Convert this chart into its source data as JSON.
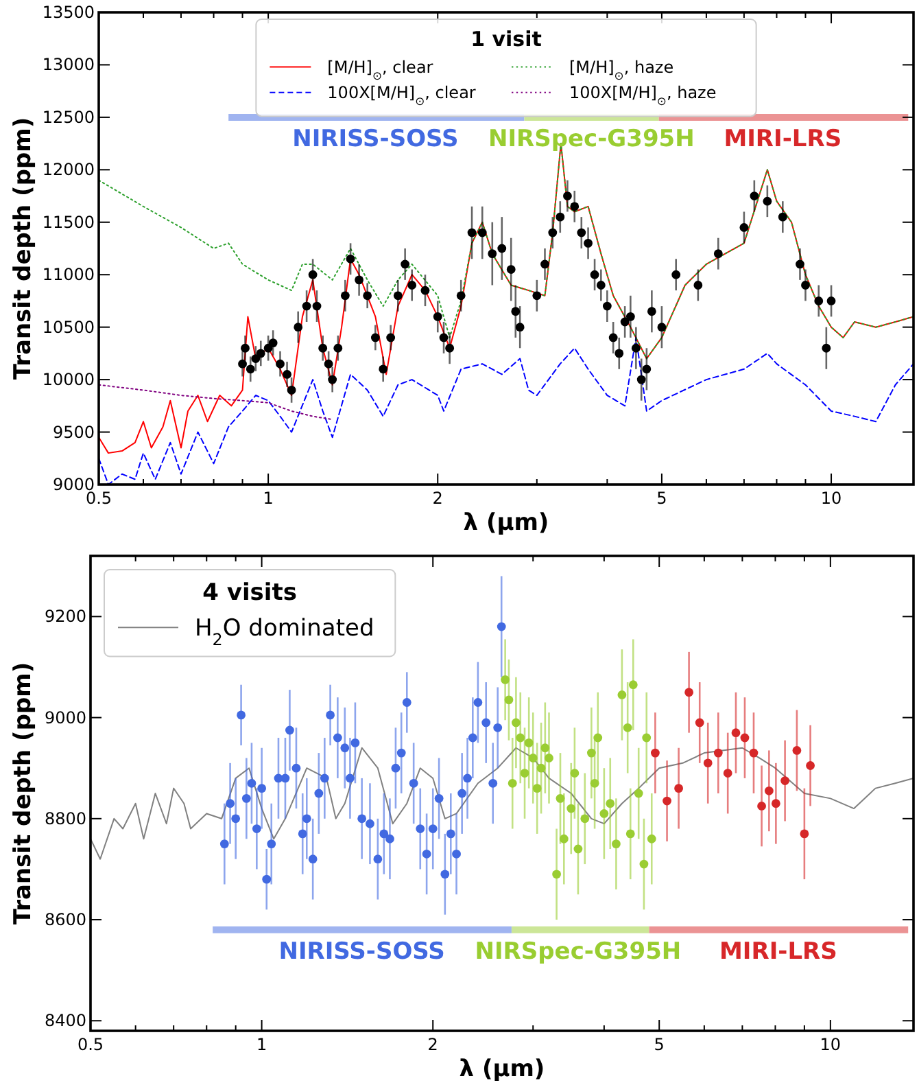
{
  "chart_data": [
    {
      "type": "line",
      "legend_title": "1 visit",
      "xlabel": "λ (μm)",
      "ylabel": "Transit depth (ppm)",
      "log": "x",
      "legend": "top",
      "xlim": [
        0.5,
        14
      ],
      "xticks": [
        0.5,
        {
          "value": 0.6,
          "label": null
        },
        {
          "value": 0.7,
          "label": null
        },
        {
          "value": 0.8,
          "label": null
        },
        {
          "value": 0.9,
          "label": null
        },
        1,
        2,
        {
          "value": 3,
          "label": null
        },
        {
          "value": 4,
          "label": null
        },
        5,
        {
          "value": 6,
          "label": null
        },
        {
          "value": 7,
          "label": null
        },
        {
          "value": 8,
          "label": null
        },
        {
          "value": 9,
          "label": null
        },
        10
      ],
      "ylim": [
        9000,
        13500
      ],
      "yticks": [
        9000,
        9500,
        10000,
        10500,
        11000,
        11500,
        12000,
        12500,
        13000,
        13500
      ],
      "annotations": [
        {
          "text": "NIRISS-SOSS",
          "x": 1.55,
          "y": 12500
        },
        {
          "text": "NIRSpec-G395H",
          "x": 3.75,
          "y": 12500
        },
        {
          "text": "MIRI-LRS",
          "x": 8.2,
          "y": 12500
        }
      ],
      "series": [
        {
          "name": "[M/H]$_{⊙}$, clear",
          "type": "line",
          "color": "#ff0000",
          "line_style": "solid",
          "marker": "none",
          "x": [
            0.5,
            0.52,
            0.55,
            0.58,
            0.6,
            0.62,
            0.65,
            0.67,
            0.7,
            0.72,
            0.75,
            0.78,
            0.82,
            0.86,
            0.9,
            0.92,
            0.95,
            1.0,
            1.05,
            1.1,
            1.15,
            1.2,
            1.25,
            1.3,
            1.35,
            1.4,
            1.45,
            1.55,
            1.62,
            1.7,
            1.8,
            1.9,
            2.0,
            2.1,
            2.2,
            2.3,
            2.4,
            2.5,
            2.7,
            2.9,
            3.1,
            3.2,
            3.31,
            3.4,
            3.5,
            3.7,
            3.9,
            4.1,
            4.4,
            4.7,
            5.0,
            5.5,
            6.0,
            7.0,
            7.7,
            8.0,
            8.5,
            9.0,
            9.5,
            10,
            10.5,
            11,
            12,
            13,
            14
          ],
          "values": [
            9450,
            9300,
            9320,
            9400,
            9600,
            9350,
            9550,
            9800,
            9350,
            9700,
            9850,
            9600,
            9850,
            9750,
            9900,
            10600,
            10200,
            10300,
            10100,
            9850,
            10600,
            10950,
            10300,
            9950,
            10500,
            11150,
            11000,
            10600,
            10050,
            10700,
            11000,
            10850,
            10600,
            10300,
            10700,
            11300,
            11500,
            11200,
            10900,
            10850,
            10800,
            11400,
            12250,
            11650,
            11600,
            11650,
            11200,
            10800,
            10500,
            10200,
            10400,
            10900,
            11100,
            11300,
            12000,
            11700,
            11500,
            11000,
            10700,
            10500,
            10400,
            10550,
            10500,
            10550,
            10600
          ]
        },
        {
          "name": "100X[M/H]$_{⊙}$, clear",
          "type": "line",
          "color": "#0000ff",
          "line_style": "dashed",
          "marker": "none",
          "x": [
            0.5,
            0.52,
            0.55,
            0.58,
            0.6,
            0.63,
            0.67,
            0.7,
            0.75,
            0.8,
            0.85,
            0.9,
            0.95,
            1.0,
            1.05,
            1.1,
            1.2,
            1.25,
            1.3,
            1.4,
            1.5,
            1.6,
            1.7,
            1.8,
            2.0,
            2.05,
            2.2,
            2.4,
            2.6,
            2.8,
            2.9,
            3.0,
            3.3,
            3.5,
            3.7,
            4.0,
            4.3,
            4.5,
            4.7,
            5.0,
            6.0,
            7.0,
            7.7,
            8.0,
            9.0,
            10,
            11,
            12,
            13,
            14
          ],
          "values": [
            9250,
            9000,
            9100,
            9050,
            9300,
            9050,
            9400,
            9100,
            9500,
            9200,
            9550,
            9700,
            9850,
            9800,
            9650,
            9500,
            10000,
            9700,
            9450,
            10050,
            9900,
            9650,
            9950,
            10000,
            9850,
            9700,
            10100,
            10150,
            10050,
            10200,
            9900,
            9850,
            10150,
            10300,
            10100,
            9850,
            9750,
            10400,
            9700,
            9800,
            10000,
            10100,
            10250,
            10150,
            9950,
            9700,
            9650,
            9600,
            9950,
            10150
          ]
        },
        {
          "name": "[M/H]$_{⊙}$, haze",
          "type": "line",
          "color": "#2ca02c",
          "line_style": "dotted",
          "marker": "none",
          "x": [
            0.5,
            0.6,
            0.7,
            0.8,
            0.85,
            0.9,
            1.0,
            1.1,
            1.15,
            1.2,
            1.3,
            1.4,
            1.5,
            1.6,
            1.7,
            1.8,
            2.0,
            2.1,
            2.2,
            2.3,
            2.4,
            2.5,
            2.7,
            2.9,
            3.1,
            3.2,
            3.31,
            3.4,
            3.5,
            3.7,
            3.9,
            4.1,
            4.4,
            4.7,
            5.0,
            5.5,
            6.0,
            7.0,
            7.7,
            8.0,
            8.5,
            9.0,
            9.5,
            10,
            10.5,
            11,
            12,
            13,
            14
          ],
          "values": [
            11900,
            11650,
            11450,
            11250,
            11300,
            11100,
            10950,
            10850,
            11100,
            11100,
            10950,
            11250,
            10950,
            10700,
            10950,
            11100,
            10800,
            10400,
            10750,
            11300,
            11500,
            11200,
            10900,
            10850,
            10800,
            11400,
            12250,
            11650,
            11600,
            11650,
            11200,
            10800,
            10500,
            10200,
            10400,
            10900,
            11100,
            11300,
            12000,
            11700,
            11500,
            11000,
            10700,
            10500,
            10400,
            10550,
            10500,
            10550,
            10600
          ]
        },
        {
          "name": "100X[M/H]$_{⊙}$, haze",
          "type": "line",
          "color": "#800080",
          "line_style": "dotted",
          "marker": "none",
          "x": [
            0.5,
            0.6,
            0.7,
            0.8,
            0.9,
            1.0,
            1.1,
            1.2,
            1.3
          ],
          "values": [
            9950,
            9900,
            9850,
            9820,
            9800,
            9780,
            9700,
            9650,
            9620
          ]
        },
        {
          "type": "scatter",
          "color": "#000000",
          "marker": "circle",
          "x": [
            0.9,
            0.91,
            0.93,
            0.95,
            0.97,
            1.0,
            1.02,
            1.05,
            1.08,
            1.1,
            1.13,
            1.17,
            1.2,
            1.22,
            1.25,
            1.28,
            1.3,
            1.33,
            1.37,
            1.4,
            1.45,
            1.5,
            1.55,
            1.6,
            1.65,
            1.7,
            1.75,
            1.8,
            1.9,
            2.0,
            2.05,
            2.1,
            2.2,
            2.3,
            2.4,
            2.5,
            2.6,
            2.7,
            2.75,
            2.8,
            3.0,
            3.1,
            3.2,
            3.3,
            3.4,
            3.5,
            3.6,
            3.7,
            3.8,
            3.9,
            4.0,
            4.1,
            4.2,
            4.3,
            4.4,
            4.5,
            4.6,
            4.7,
            4.8,
            5.0,
            5.3,
            5.8,
            6.3,
            7.0,
            7.3,
            7.7,
            8.2,
            8.8,
            9.0,
            9.5,
            9.8,
            10.0
          ],
          "values": [
            10150,
            10300,
            10100,
            10200,
            10250,
            10300,
            10350,
            10150,
            10050,
            9900,
            10500,
            10700,
            11000,
            10700,
            10300,
            10150,
            10000,
            10300,
            10800,
            11150,
            10950,
            10800,
            10400,
            10100,
            10400,
            10800,
            11100,
            10900,
            10850,
            10600,
            10400,
            10300,
            10800,
            11400,
            11400,
            11200,
            11250,
            11050,
            10650,
            10500,
            10800,
            11100,
            11400,
            11550,
            11750,
            11650,
            11400,
            11300,
            11000,
            10900,
            10700,
            10400,
            10250,
            10550,
            10600,
            10300,
            10000,
            10100,
            10650,
            10500,
            11000,
            10900,
            11200,
            11450,
            11750,
            11700,
            11550,
            11100,
            10900,
            10750,
            10300,
            10750
          ],
          "errors": [
            120,
            120,
            120,
            120,
            120,
            120,
            120,
            120,
            120,
            120,
            150,
            150,
            150,
            150,
            120,
            120,
            120,
            120,
            150,
            150,
            150,
            120,
            120,
            120,
            120,
            150,
            150,
            150,
            150,
            150,
            150,
            150,
            150,
            250,
            250,
            300,
            300,
            300,
            250,
            200,
            150,
            150,
            150,
            150,
            150,
            150,
            150,
            150,
            150,
            150,
            150,
            150,
            150,
            150,
            200,
            200,
            200,
            200,
            200,
            200,
            150,
            150,
            150,
            150,
            150,
            150,
            150,
            150,
            150,
            150,
            200,
            150
          ]
        },
        {
          "type": "line",
          "color": "#a0b4f0",
          "x": [
            0.85,
            2.85
          ],
          "values": [
            12500,
            12500
          ]
        },
        {
          "type": "line",
          "color": "#cce698",
          "x": [
            2.85,
            4.94
          ],
          "values": [
            12500,
            12500
          ]
        },
        {
          "type": "line",
          "color": "#eb9394",
          "x": [
            4.94,
            13.7
          ],
          "values": [
            12500,
            12500
          ]
        }
      ]
    },
    {
      "type": "line",
      "legend_title": "4 visits",
      "xlabel": "λ (μm)",
      "ylabel": "Transit depth (ppm)",
      "log": "x",
      "legend": "top left",
      "xlim": [
        0.5,
        14
      ],
      "xticks": [
        0.5,
        {
          "value": 0.6,
          "label": null
        },
        {
          "value": 0.7,
          "label": null
        },
        {
          "value": 0.8,
          "label": null
        },
        {
          "value": 0.9,
          "label": null
        },
        1,
        2,
        {
          "value": 3,
          "label": null
        },
        {
          "value": 4,
          "label": null
        },
        5,
        {
          "value": 6,
          "label": null
        },
        {
          "value": 7,
          "label": null
        },
        {
          "value": 8,
          "label": null
        },
        {
          "value": 9,
          "label": null
        },
        10
      ],
      "ylim": [
        8380,
        9320
      ],
      "yticks": [
        8400,
        8600,
        8800,
        9000,
        9200
      ],
      "annotations": [
        {
          "text": "NIRISS-SOSS",
          "x": 1.5,
          "y": 8580
        },
        {
          "text": "NIRSpec-G395H",
          "x": 3.6,
          "y": 8580
        },
        {
          "text": "MIRI-LRS",
          "x": 8.1,
          "y": 8580
        }
      ],
      "series": [
        {
          "name": "H$_{2}$O dominated",
          "type": "line",
          "color": "#808080",
          "line_style": "solid",
          "marker": "none",
          "x": [
            0.5,
            0.52,
            0.55,
            0.57,
            0.6,
            0.62,
            0.65,
            0.68,
            0.7,
            0.73,
            0.75,
            0.8,
            0.85,
            0.9,
            0.95,
            1.0,
            1.05,
            1.1,
            1.2,
            1.3,
            1.35,
            1.4,
            1.5,
            1.6,
            1.7,
            1.8,
            1.9,
            2.0,
            2.1,
            2.2,
            2.4,
            2.6,
            2.8,
            3.0,
            3.2,
            3.5,
            3.8,
            4.0,
            4.3,
            4.6,
            5.0,
            5.5,
            6.0,
            7.0,
            7.5,
            8.0,
            9.0,
            10,
            11,
            12,
            13,
            14
          ],
          "values": [
            8760,
            8720,
            8800,
            8780,
            8830,
            8760,
            8850,
            8790,
            8860,
            8830,
            8780,
            8810,
            8800,
            8880,
            8900,
            8820,
            8760,
            8800,
            8900,
            8880,
            8800,
            8830,
            8940,
            8900,
            8790,
            8830,
            8900,
            8880,
            8800,
            8810,
            8870,
            8900,
            8940,
            8920,
            8880,
            8850,
            8800,
            8790,
            8830,
            8860,
            8900,
            8910,
            8930,
            8940,
            8920,
            8900,
            8850,
            8840,
            8820,
            8860,
            8870,
            8880
          ]
        },
        {
          "type": "scatter",
          "color": "#4169e1",
          "marker": "circle",
          "x": [
            0.86,
            0.88,
            0.9,
            0.92,
            0.94,
            0.96,
            0.98,
            1.0,
            1.02,
            1.04,
            1.07,
            1.1,
            1.12,
            1.15,
            1.18,
            1.2,
            1.23,
            1.26,
            1.29,
            1.32,
            1.36,
            1.4,
            1.43,
            1.46,
            1.5,
            1.55,
            1.6,
            1.64,
            1.68,
            1.72,
            1.76,
            1.8,
            1.85,
            1.9,
            1.95,
            2.0,
            2.05,
            2.1,
            2.15,
            2.2,
            2.25,
            2.3,
            2.35,
            2.4,
            2.48,
            2.55,
            2.6,
            2.64
          ],
          "values": [
            8750,
            8830,
            8800,
            9005,
            8840,
            8870,
            8780,
            8860,
            8680,
            8750,
            8880,
            8880,
            8975,
            8900,
            8770,
            8800,
            8720,
            8850,
            8880,
            9005,
            8960,
            8940,
            8880,
            8950,
            8800,
            8790,
            8720,
            8770,
            8760,
            8900,
            8930,
            9030,
            8870,
            8780,
            8730,
            8780,
            8840,
            8690,
            8770,
            8730,
            8850,
            8880,
            8960,
            9030,
            8990,
            8870,
            8980,
            9180
          ],
          "errors": [
            80,
            80,
            80,
            60,
            80,
            80,
            80,
            80,
            60,
            80,
            80,
            80,
            80,
            80,
            80,
            80,
            80,
            80,
            80,
            60,
            80,
            80,
            80,
            80,
            80,
            80,
            80,
            80,
            80,
            80,
            80,
            60,
            80,
            80,
            80,
            80,
            80,
            80,
            80,
            80,
            80,
            80,
            80,
            80,
            80,
            80,
            80,
            100
          ]
        },
        {
          "type": "scatter",
          "color": "#9acd32",
          "marker": "circle",
          "x": [
            2.68,
            2.72,
            2.76,
            2.8,
            2.85,
            2.9,
            2.95,
            3.0,
            3.05,
            3.1,
            3.15,
            3.2,
            3.3,
            3.35,
            3.4,
            3.5,
            3.55,
            3.6,
            3.7,
            3.8,
            3.85,
            3.9,
            4.0,
            4.1,
            4.2,
            4.3,
            4.4,
            4.45,
            4.5,
            4.6,
            4.7,
            4.75,
            4.85
          ],
          "values": [
            9075,
            9035,
            8870,
            8990,
            8960,
            8890,
            8950,
            8920,
            8860,
            8900,
            8940,
            8920,
            8690,
            8840,
            8760,
            8820,
            8890,
            8740,
            8800,
            8930,
            8870,
            8960,
            8810,
            8830,
            8750,
            9045,
            8980,
            8770,
            9065,
            8850,
            8710,
            8960,
            8760
          ],
          "errors": [
            80,
            80,
            90,
            90,
            90,
            90,
            90,
            90,
            90,
            90,
            90,
            90,
            90,
            90,
            90,
            90,
            90,
            90,
            90,
            90,
            90,
            90,
            90,
            90,
            90,
            90,
            90,
            90,
            90,
            90,
            90,
            90,
            90
          ]
        },
        {
          "type": "scatter",
          "color": "#d62728",
          "marker": "circle",
          "x": [
            4.92,
            5.16,
            5.41,
            5.64,
            5.89,
            6.09,
            6.35,
            6.6,
            6.82,
            7.07,
            7.33,
            7.57,
            7.8,
            8.02,
            8.32,
            8.73,
            9.0,
            9.22
          ],
          "values": [
            8930,
            8835,
            8860,
            9050,
            8990,
            8910,
            8930,
            8890,
            8970,
            8960,
            8930,
            8825,
            8855,
            8830,
            8875,
            8935,
            8770,
            8905
          ],
          "errors": [
            80,
            80,
            80,
            80,
            80,
            80,
            80,
            80,
            80,
            80,
            80,
            80,
            80,
            80,
            80,
            80,
            90,
            80
          ]
        },
        {
          "type": "line",
          "color": "#a0b4f0",
          "x": [
            0.82,
            2.75
          ],
          "values": [
            8580,
            8580
          ]
        },
        {
          "type": "line",
          "color": "#cce698",
          "x": [
            2.75,
            4.8
          ],
          "values": [
            8580,
            8580
          ]
        },
        {
          "type": "line",
          "color": "#eb9394",
          "x": [
            4.8,
            13.7
          ],
          "values": [
            8580,
            8580
          ]
        }
      ]
    }
  ]
}
